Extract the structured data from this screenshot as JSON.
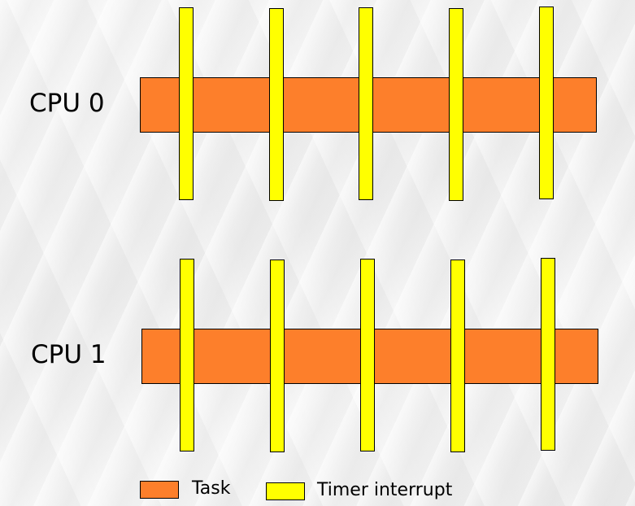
{
  "cpus": [
    {
      "label": "CPU 0",
      "interrupt_count": 5
    },
    {
      "label": "CPU 1",
      "interrupt_count": 5
    }
  ],
  "legend": {
    "task_label": "Task",
    "timer_label": "Timer interrupt"
  },
  "colors": {
    "task": "#fd7f2b",
    "timer_interrupt": "#ffff00",
    "outline": "#000000"
  }
}
